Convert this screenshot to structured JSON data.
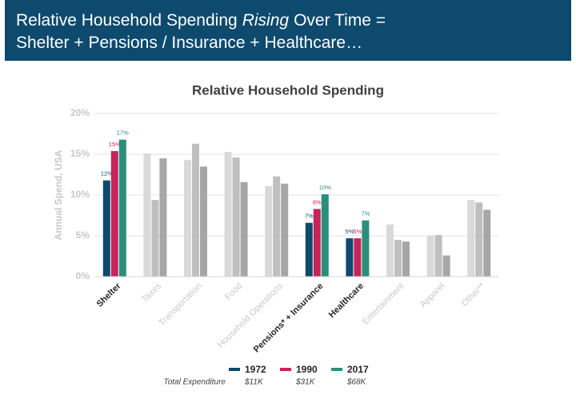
{
  "header": {
    "line1_start": "Relative Household Spending",
    "line1_italic": "Rising",
    "line1_end": "Over Time =",
    "line2": "Shelter + Pensions / Insurance + Healthcare…"
  },
  "chart_data": {
    "type": "bar",
    "title": "Relative Household Spending",
    "y_label": "Annual Spend, USA",
    "categories": [
      "Shelter",
      "Taxes",
      "Transportation",
      "Food",
      "Household Operations",
      "Pensions* + Insurance",
      "Healthcare",
      "Entertainment",
      "Apparel",
      "Other**"
    ],
    "highlighted": [
      true,
      false,
      false,
      false,
      false,
      true,
      true,
      false,
      false,
      false
    ],
    "series": [
      {
        "name": "1972",
        "color": "#0d4a6e",
        "muted_color": "#d9d9d9",
        "total": "$11K",
        "values": [
          11.8,
          15.1,
          14.3,
          15.3,
          11.1,
          6.6,
          4.7,
          6.4,
          5.0,
          9.4
        ],
        "value_labels": [
          "12%",
          null,
          null,
          null,
          null,
          "7%",
          "5%",
          null,
          null,
          null
        ]
      },
      {
        "name": "1990",
        "color": "#c8235a",
        "muted_color": "#bfbfbf",
        "total": "$31K",
        "values": [
          15.4,
          9.4,
          16.3,
          14.6,
          12.3,
          8.3,
          4.7,
          4.5,
          5.1,
          9.1
        ],
        "value_labels": [
          "15%",
          null,
          null,
          null,
          null,
          "8%",
          "5%",
          null,
          null,
          null
        ]
      },
      {
        "name": "2017",
        "color": "#2a8f7a",
        "muted_color": "#a6a6a6",
        "total": "$68K",
        "values": [
          16.8,
          14.5,
          13.5,
          11.6,
          11.4,
          10.1,
          6.9,
          4.3,
          2.6,
          8.2
        ],
        "value_labels": [
          "17%",
          null,
          null,
          null,
          null,
          "10%",
          "7%",
          null,
          null,
          null
        ]
      }
    ],
    "legend_note": "Total Expenditure",
    "ylim": [
      0,
      20
    ],
    "yticks": [
      {
        "value": 0,
        "label": "0%"
      },
      {
        "value": 5,
        "label": "5%"
      },
      {
        "value": 10,
        "label": "10%"
      },
      {
        "value": 15,
        "label": "15%"
      },
      {
        "value": 20,
        "label": "20%"
      }
    ],
    "grid": true
  }
}
